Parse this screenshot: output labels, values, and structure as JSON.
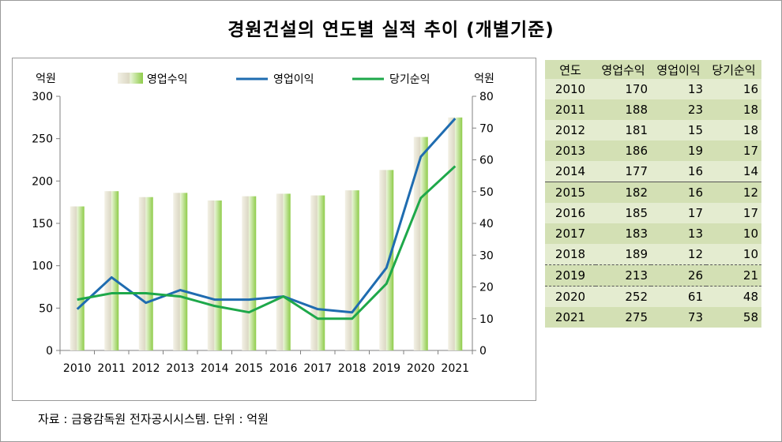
{
  "title": "경원건설의 연도별 실적 추이 (개별기준)",
  "source": "자료 : 금융감독원 전자공시시스템. 단위 : 억원",
  "chart_data": {
    "type": "bar",
    "categories": [
      "2010",
      "2011",
      "2012",
      "2013",
      "2014",
      "2015",
      "2016",
      "2017",
      "2018",
      "2019",
      "2020",
      "2021"
    ],
    "series": [
      {
        "name": "영업수익",
        "type": "bar",
        "axis": "left",
        "color": "#a6d86a",
        "values": [
          170,
          188,
          181,
          186,
          177,
          182,
          185,
          183,
          189,
          213,
          252,
          275
        ]
      },
      {
        "name": "영업이익",
        "type": "line",
        "axis": "right",
        "color": "#1f6cb0",
        "values": [
          13,
          23,
          15,
          19,
          16,
          16,
          17,
          13,
          12,
          26,
          61,
          73
        ]
      },
      {
        "name": "당기순익",
        "type": "line",
        "axis": "right",
        "color": "#1ea84a",
        "values": [
          16,
          18,
          18,
          17,
          14,
          12,
          17,
          10,
          10,
          21,
          48,
          58
        ]
      }
    ],
    "y_left": {
      "label": "억원",
      "min": 0,
      "max": 300,
      "ticks": [
        0,
        50,
        100,
        150,
        200,
        250,
        300
      ]
    },
    "y_right": {
      "label": "억원",
      "min": 0,
      "max": 80,
      "ticks": [
        0,
        10,
        20,
        30,
        40,
        50,
        60,
        70,
        80
      ]
    },
    "grid": false,
    "legend_position": "top"
  },
  "table": {
    "headers": [
      "연도",
      "영업수익",
      "영업이익",
      "당기순익"
    ],
    "rows": [
      [
        "2010",
        "170",
        "13",
        "16"
      ],
      [
        "2011",
        "188",
        "23",
        "18"
      ],
      [
        "2012",
        "181",
        "15",
        "18"
      ],
      [
        "2013",
        "186",
        "19",
        "17"
      ],
      [
        "2014",
        "177",
        "16",
        "14"
      ],
      [
        "2015",
        "182",
        "16",
        "12"
      ],
      [
        "2016",
        "185",
        "17",
        "17"
      ],
      [
        "2017",
        "183",
        "13",
        "10"
      ],
      [
        "2018",
        "189",
        "12",
        "10"
      ],
      [
        "2019",
        "213",
        "26",
        "21"
      ],
      [
        "2020",
        "252",
        "61",
        "48"
      ],
      [
        "2021",
        "275",
        "73",
        "58"
      ]
    ]
  }
}
